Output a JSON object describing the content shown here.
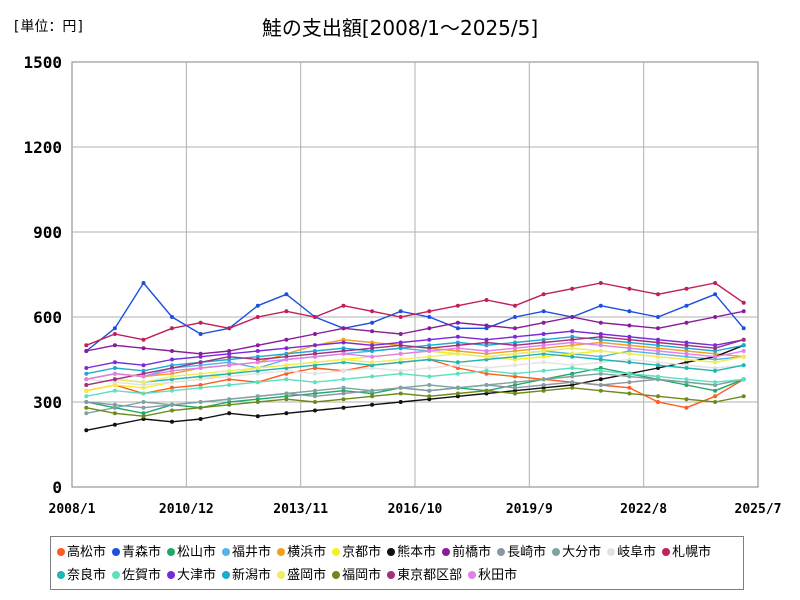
{
  "unit_label": "[単位：円]",
  "chart_data": {
    "type": "line",
    "title": "鮭の支出額[2008/1～2025/5]",
    "xlabel": "",
    "ylabel": "",
    "ylim": [
      0,
      1500
    ],
    "y_ticks": [
      0,
      300,
      600,
      900,
      1200,
      1500
    ],
    "x_ticks": [
      "2008/1",
      "2010/12",
      "2013/11",
      "2016/10",
      "2019/9",
      "2022/8",
      "2025/7"
    ],
    "x_start": "2008/1",
    "x_end": "2025/7",
    "grid": true,
    "legend_position": "bottom",
    "series": [
      {
        "name": "高松市",
        "color": "#ff5a1f",
        "values": [
          340,
          360,
          330,
          350,
          360,
          380,
          370,
          400,
          420,
          410,
          430,
          440,
          450,
          420,
          400,
          390,
          380,
          370,
          360,
          350,
          300,
          280,
          320,
          380
        ]
      },
      {
        "name": "青森市",
        "color": "#1c4fe0",
        "values": [
          480,
          560,
          720,
          600,
          540,
          560,
          640,
          680,
          600,
          560,
          580,
          620,
          600,
          560,
          560,
          600,
          620,
          600,
          640,
          620,
          600,
          640,
          680,
          560
        ]
      },
      {
        "name": "松山市",
        "color": "#1ea86a",
        "values": [
          300,
          280,
          260,
          290,
          280,
          300,
          310,
          320,
          330,
          340,
          330,
          350,
          340,
          350,
          340,
          360,
          380,
          400,
          420,
          400,
          380,
          360,
          340,
          380
        ]
      },
      {
        "name": "福井市",
        "color": "#55b4e6",
        "values": [
          380,
          400,
          390,
          420,
          430,
          440,
          420,
          450,
          460,
          470,
          480,
          490,
          480,
          470,
          460,
          470,
          480,
          470,
          460,
          480,
          470,
          460,
          450,
          460
        ]
      },
      {
        "name": "横浜市",
        "color": "#f0a020",
        "values": [
          380,
          400,
          390,
          400,
          420,
          430,
          440,
          470,
          500,
          520,
          510,
          500,
          490,
          480,
          470,
          480,
          490,
          500,
          510,
          500,
          490,
          480,
          470,
          460
        ]
      },
      {
        "name": "京都市",
        "color": "#f5f025",
        "values": [
          340,
          360,
          350,
          370,
          380,
          400,
          420,
          430,
          440,
          450,
          460,
          470,
          480,
          470,
          460,
          450,
          460,
          470,
          480,
          470,
          460,
          450,
          440,
          460
        ]
      },
      {
        "name": "熊本市",
        "color": "#111111",
        "values": [
          200,
          220,
          240,
          230,
          240,
          260,
          250,
          260,
          270,
          280,
          290,
          300,
          310,
          320,
          330,
          340,
          350,
          360,
          380,
          400,
          420,
          440,
          460,
          500
        ]
      },
      {
        "name": "前橋市",
        "color": "#8a1b9a",
        "values": [
          480,
          500,
          490,
          480,
          470,
          480,
          500,
          520,
          540,
          560,
          550,
          540,
          560,
          580,
          570,
          560,
          580,
          600,
          580,
          570,
          560,
          580,
          600,
          620
        ]
      },
      {
        "name": "長崎市",
        "color": "#8a98a6",
        "values": [
          300,
          290,
          280,
          290,
          300,
          310,
          320,
          330,
          320,
          330,
          340,
          350,
          340,
          350,
          360,
          350,
          360,
          370,
          360,
          370,
          380,
          370,
          360,
          380
        ]
      },
      {
        "name": "大分市",
        "color": "#7fa4a0",
        "values": [
          260,
          280,
          300,
          290,
          300,
          310,
          320,
          330,
          340,
          350,
          340,
          350,
          360,
          350,
          360,
          370,
          380,
          390,
          400,
          390,
          380,
          370,
          360,
          380
        ]
      },
      {
        "name": "岐阜市",
        "color": "#e2e2e2",
        "values": [
          380,
          370,
          360,
          370,
          380,
          390,
          400,
          410,
          400,
          410,
          420,
          410,
          420,
          430,
          420,
          430,
          440,
          430,
          440,
          450,
          440,
          430,
          420,
          430
        ]
      },
      {
        "name": "札幌市",
        "color": "#c01e5c",
        "values": [
          500,
          540,
          520,
          560,
          580,
          560,
          600,
          620,
          600,
          640,
          620,
          600,
          620,
          640,
          660,
          640,
          680,
          700,
          720,
          700,
          680,
          700,
          720,
          650
        ]
      },
      {
        "name": "奈良市",
        "color": "#22b4b4",
        "values": [
          360,
          380,
          370,
          380,
          390,
          400,
          410,
          420,
          430,
          440,
          430,
          440,
          450,
          440,
          450,
          460,
          470,
          460,
          450,
          440,
          430,
          420,
          410,
          430
        ]
      },
      {
        "name": "佐賀市",
        "color": "#5ee0c0",
        "values": [
          320,
          340,
          330,
          340,
          350,
          360,
          370,
          380,
          370,
          380,
          390,
          400,
          390,
          400,
          410,
          400,
          410,
          420,
          410,
          400,
          390,
          380,
          370,
          380
        ]
      },
      {
        "name": "大津市",
        "color": "#7a2ad8",
        "values": [
          420,
          440,
          430,
          450,
          460,
          470,
          480,
          490,
          500,
          510,
          500,
          510,
          520,
          530,
          520,
          530,
          540,
          550,
          540,
          530,
          520,
          510,
          500,
          520
        ]
      },
      {
        "name": "新潟市",
        "color": "#1eaad0",
        "values": [
          400,
          420,
          410,
          430,
          440,
          450,
          460,
          470,
          480,
          490,
          480,
          490,
          500,
          510,
          500,
          510,
          520,
          530,
          520,
          510,
          500,
          490,
          480,
          500
        ]
      },
      {
        "name": "盛岡市",
        "color": "#f0ec60",
        "values": [
          360,
          380,
          370,
          390,
          400,
          410,
          420,
          430,
          440,
          450,
          440,
          450,
          460,
          470,
          460,
          470,
          480,
          490,
          480,
          470,
          460,
          450,
          440,
          460
        ]
      },
      {
        "name": "福岡市",
        "color": "#6e8a18",
        "values": [
          280,
          260,
          250,
          270,
          280,
          290,
          300,
          310,
          300,
          310,
          320,
          330,
          320,
          330,
          340,
          330,
          340,
          350,
          340,
          330,
          320,
          310,
          300,
          320
        ]
      },
      {
        "name": "東京都区部",
        "color": "#a03080",
        "values": [
          360,
          380,
          400,
          420,
          440,
          460,
          450,
          460,
          470,
          480,
          490,
          500,
          490,
          500,
          510,
          500,
          510,
          520,
          530,
          520,
          510,
          500,
          490,
          520
        ]
      },
      {
        "name": "秋田市",
        "color": "#e080e8",
        "values": [
          380,
          400,
          390,
          410,
          420,
          430,
          440,
          450,
          460,
          470,
          460,
          470,
          480,
          490,
          480,
          490,
          500,
          510,
          500,
          490,
          480,
          470,
          460,
          480
        ]
      }
    ]
  }
}
